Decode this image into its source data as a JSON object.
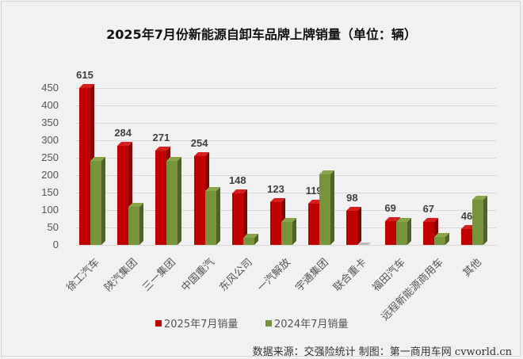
{
  "title": "2025年7月份新能源自卸车品牌上牌销量（单位：辆）",
  "legend": [
    {
      "label": "2025年7月销量",
      "color": "#c00000"
    },
    {
      "label": "2024年7月销量",
      "color": "#77933c"
    }
  ],
  "source": "数据来源：交强险统计 制图：第一商用车网 cvworld.cn",
  "chart_data": {
    "type": "bar",
    "title": "2025年7月份新能源自卸车品牌上牌销量（单位：辆）",
    "xlabel": "",
    "ylabel": "",
    "ylim": [
      0,
      450
    ],
    "yticks": [
      0,
      50,
      100,
      150,
      200,
      250,
      300,
      350,
      400,
      450
    ],
    "grid": true,
    "legend_position": "bottom",
    "categories": [
      "徐工汽车",
      "陕汽集团",
      "三一集团",
      "中国重汽",
      "东风公司",
      "一汽解放",
      "宇通集团",
      "联合重卡",
      "福田汽车",
      "远程新能源商用车",
      "其他"
    ],
    "series": [
      {
        "name": "2025年7月销量",
        "color": "#c00000",
        "values": [
          615,
          284,
          271,
          254,
          148,
          123,
          119,
          98,
          69,
          67,
          46
        ],
        "labels": [
          "615",
          "284",
          "271",
          "254",
          "148",
          "123",
          "119",
          "98",
          "69",
          "67",
          "46"
        ]
      },
      {
        "name": "2024年7月销量",
        "color": "#77933c",
        "values": [
          240,
          110,
          240,
          155,
          20,
          67,
          203,
          0,
          65,
          22,
          130
        ]
      }
    ],
    "annotations": [
      "徐工汽车 bar truncated at axis max (615)"
    ]
  }
}
